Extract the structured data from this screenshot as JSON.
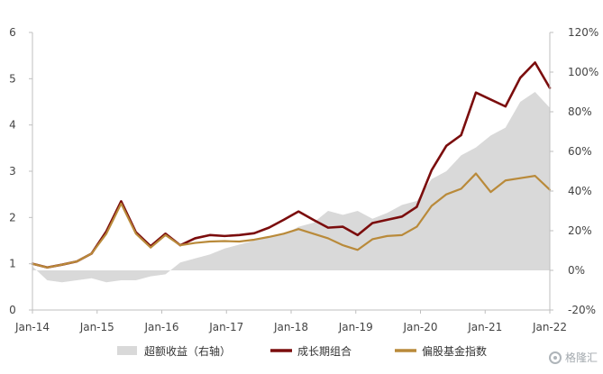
{
  "chart_data": {
    "type": "line",
    "categories": [
      "Jan-14",
      "Jan-15",
      "Jan-16",
      "Jan-17",
      "Jan-18",
      "Jan-19",
      "Jan-20",
      "Jan-21",
      "Jan-22"
    ],
    "x": [
      "Jan-14",
      "Apr-14",
      "Jul-14",
      "Oct-14",
      "Jan-15",
      "Apr-15",
      "Jun-15",
      "Jul-15",
      "Sep-15",
      "Oct-15",
      "Jan-16",
      "Apr-16",
      "Jul-16",
      "Oct-16",
      "Jan-17",
      "Apr-17",
      "Jul-17",
      "Oct-17",
      "Jan-18",
      "Apr-18",
      "Jul-18",
      "Oct-18",
      "Jan-19",
      "Apr-19",
      "Jul-19",
      "Oct-19",
      "Jan-20",
      "Apr-20",
      "Jul-20",
      "Oct-20",
      "Jan-21",
      "Apr-21",
      "Jul-21",
      "Oct-21",
      "Dec-21",
      "Jan-22"
    ],
    "left_axis": {
      "ylim": [
        0,
        6
      ],
      "ticks": [
        "0",
        "1",
        "2",
        "3",
        "4",
        "5",
        "6"
      ]
    },
    "right_axis": {
      "ylim": [
        -0.2,
        1.2
      ],
      "ticks": [
        "-20%",
        "0%",
        "20%",
        "40%",
        "60%",
        "80%",
        "100%",
        "120%"
      ]
    },
    "series": [
      {
        "name": "超额收益（右轴）",
        "axis": "right",
        "style": "area",
        "color": "#d9d9d9",
        "values": [
          0.02,
          -0.05,
          -0.06,
          -0.05,
          -0.04,
          -0.06,
          -0.05,
          -0.05,
          -0.03,
          -0.02,
          0.04,
          0.06,
          0.08,
          0.11,
          0.13,
          0.15,
          0.17,
          0.18,
          0.22,
          0.24,
          0.3,
          0.28,
          0.3,
          0.26,
          0.29,
          0.33,
          0.35,
          0.46,
          0.5,
          0.58,
          0.62,
          0.68,
          0.72,
          0.85,
          0.9,
          0.82
        ]
      },
      {
        "name": "成长期组合",
        "axis": "left",
        "style": "line",
        "color": "#7b0d0d",
        "values": [
          1.0,
          0.92,
          0.98,
          1.05,
          1.22,
          1.7,
          2.35,
          1.68,
          1.38,
          1.65,
          1.4,
          1.55,
          1.62,
          1.6,
          1.62,
          1.66,
          1.78,
          1.95,
          2.13,
          1.95,
          1.78,
          1.8,
          1.62,
          1.88,
          1.95,
          2.02,
          2.23,
          3.02,
          3.55,
          3.78,
          4.7,
          4.55,
          4.4,
          5.02,
          5.35,
          4.8
        ]
      },
      {
        "name": "偏股基金指数",
        "axis": "left",
        "style": "line",
        "color": "#b98a3a",
        "values": [
          1.0,
          0.92,
          0.98,
          1.05,
          1.22,
          1.65,
          2.3,
          1.65,
          1.35,
          1.62,
          1.4,
          1.45,
          1.48,
          1.49,
          1.48,
          1.52,
          1.58,
          1.65,
          1.75,
          1.65,
          1.55,
          1.4,
          1.3,
          1.53,
          1.6,
          1.62,
          1.8,
          2.25,
          2.5,
          2.62,
          2.95,
          2.55,
          2.8,
          2.85,
          2.9,
          2.6
        ]
      }
    ],
    "legend": {
      "placement": "bottom",
      "items": [
        "超额收益（右轴）",
        "成长期组合",
        "偏股基金指数"
      ]
    },
    "grid": false
  },
  "watermark": {
    "text": "格隆汇"
  },
  "colors": {
    "axis": "#bfbfbf",
    "tick_text": "#444444",
    "background": "#ffffff"
  }
}
